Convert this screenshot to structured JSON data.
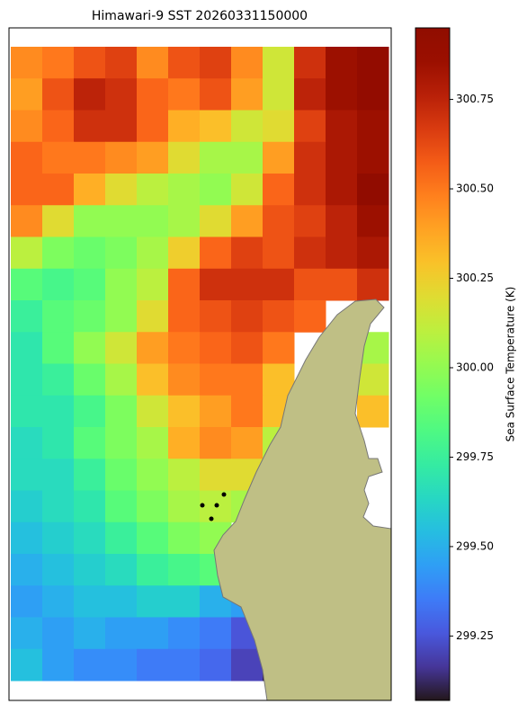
{
  "chart_data": {
    "type": "heatmap",
    "title": "Himawari-9 SST 20260331150000",
    "colorbar_label": "Sea Surface Temperature (K)",
    "clim": [
      299.07,
      300.95
    ],
    "cticks": [
      299.25,
      {
        "value": 299.5,
        "label": "299.50"
      },
      299.75,
      {
        "value": 300,
        "label": "300.00"
      },
      300.25,
      {
        "value": 300.5,
        "label": "300.50"
      },
      300.75
    ],
    "grid": [
      [
        300.45,
        300.5,
        300.6,
        300.65,
        300.45,
        300.6,
        300.65,
        300.45,
        300.15,
        300.7,
        300.85,
        300.9
      ],
      [
        300.4,
        300.6,
        300.75,
        300.7,
        300.55,
        300.5,
        300.6,
        300.4,
        300.15,
        300.75,
        300.85,
        300.9
      ],
      [
        300.45,
        300.55,
        300.7,
        300.7,
        300.55,
        300.35,
        300.3,
        300.15,
        300.2,
        300.65,
        300.8,
        300.85
      ],
      [
        300.55,
        300.5,
        300.5,
        300.45,
        300.4,
        300.2,
        300.05,
        300.05,
        300.4,
        300.7,
        300.8,
        300.85
      ],
      [
        300.55,
        300.55,
        300.35,
        300.2,
        300.1,
        300.05,
        300.0,
        300.15,
        300.55,
        300.7,
        300.8,
        300.92
      ],
      [
        300.45,
        300.2,
        300.0,
        300.0,
        300.0,
        300.05,
        300.2,
        300.4,
        300.6,
        300.65,
        300.75,
        300.85
      ],
      [
        300.1,
        299.95,
        299.9,
        299.95,
        300.05,
        300.25,
        300.55,
        300.65,
        300.6,
        300.7,
        300.75,
        300.8
      ],
      [
        299.85,
        299.8,
        299.85,
        300.0,
        300.1,
        300.55,
        300.7,
        300.7,
        300.7,
        300.6,
        300.6,
        300.7
      ],
      [
        299.75,
        299.85,
        299.9,
        300.0,
        300.2,
        300.55,
        300.6,
        300.65,
        300.6,
        300.55,
        null,
        null
      ],
      [
        299.7,
        299.85,
        300.0,
        300.15,
        300.4,
        300.5,
        300.55,
        300.6,
        300.5,
        null,
        null,
        300.05
      ],
      [
        299.7,
        299.75,
        299.9,
        300.05,
        300.3,
        300.45,
        300.5,
        300.5,
        300.3,
        null,
        null,
        300.15
      ],
      [
        299.7,
        299.7,
        299.8,
        299.95,
        300.15,
        300.3,
        300.4,
        300.5,
        300.3,
        null,
        null,
        300.3
      ],
      [
        299.65,
        299.7,
        299.85,
        299.95,
        300.05,
        300.35,
        300.45,
        300.4,
        300.1,
        null,
        null,
        null
      ],
      [
        299.65,
        299.65,
        299.75,
        299.9,
        300.0,
        300.1,
        300.2,
        300.2,
        null,
        null,
        null,
        null
      ],
      [
        299.6,
        299.65,
        299.7,
        299.85,
        299.95,
        300.05,
        300.1,
        300.05,
        null,
        null,
        null,
        null
      ],
      [
        299.55,
        299.6,
        299.65,
        299.75,
        299.85,
        299.95,
        300.0,
        null,
        null,
        null,
        null,
        null
      ],
      [
        299.5,
        299.55,
        299.6,
        299.65,
        299.75,
        299.8,
        299.85,
        null,
        null,
        null,
        null,
        null
      ],
      [
        299.45,
        299.5,
        299.55,
        299.55,
        299.6,
        299.6,
        299.5,
        299.45,
        null,
        null,
        null,
        null
      ],
      [
        299.5,
        299.45,
        299.5,
        299.45,
        299.45,
        299.4,
        299.35,
        299.25,
        299.2,
        null,
        null,
        null
      ],
      [
        299.55,
        299.45,
        299.4,
        299.4,
        299.35,
        299.35,
        299.3,
        299.2,
        299.1,
        null,
        null,
        null
      ]
    ]
  }
}
